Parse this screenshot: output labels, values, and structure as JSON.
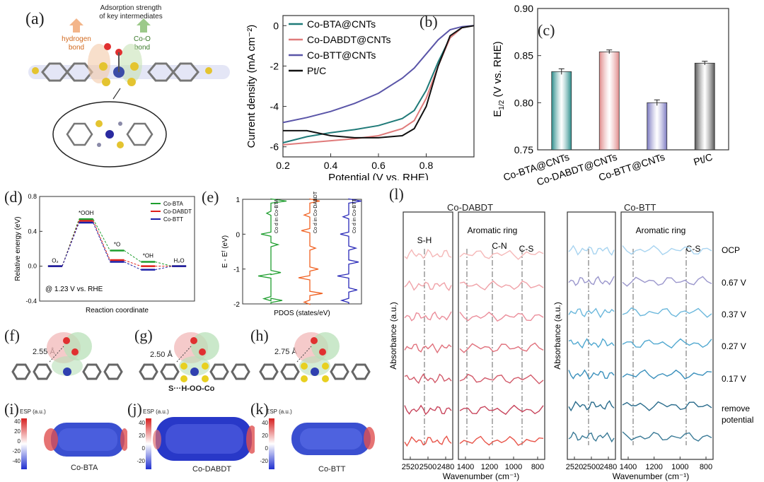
{
  "a": {
    "label": "(a)",
    "title_line1": "Adsorption strength",
    "title_line2": "of key intermediates",
    "hbond": "hydrogen\nbond",
    "hbond_l1": "hydrogen",
    "hbond_l2": "bond",
    "coo_l1": "Co-O",
    "coo_l2": "bond"
  },
  "b": {
    "label": "(b)",
    "xlabel": "Potential (V vs. RHE)",
    "ylabel": "Current density (mA cm⁻²)",
    "legend": [
      "Co-BTA@CNTs",
      "Co-DABDT@CNTs",
      "Co-BTT@CNTs",
      "Pt/C"
    ]
  },
  "c": {
    "label": "(c)",
    "ylabel_main": "E",
    "ylabel_sub": "1/2",
    "ylabel_rest": " (V vs. RHE)"
  },
  "d": {
    "label": "(d)",
    "xlabel": "Reaction coordinate",
    "ylabel": "Relative energy (eV)",
    "note": "@ 1.23 V vs. RHE",
    "states": [
      "O₂",
      "*OOH",
      "*O",
      "*OH",
      "H₂O"
    ],
    "legend": [
      "Co-BTA",
      "Co-DABDT",
      "Co-BTT"
    ]
  },
  "e": {
    "label": "(e)",
    "xlabel": "PDOS (states/eV)",
    "ylabel": "E - Eᶠ (eV)",
    "traces": [
      "Co d in Co-BTA",
      "Co d in Co-DABDT",
      "Co d in Co-BTT"
    ]
  },
  "f": {
    "label": "(f)",
    "dist": "2.55 Å"
  },
  "g": {
    "label": "(g)",
    "dist": "2.50 Å",
    "bond": "S···H-OO-Co"
  },
  "h": {
    "label": "(h)",
    "dist": "2.75 Å"
  },
  "i": {
    "label": "(i)",
    "esp": "ESP (a.u.)",
    "name": "Co-BTA",
    "ticks": [
      "40",
      "20",
      "0",
      "-20",
      "-40"
    ]
  },
  "j": {
    "label": "(j)",
    "esp": "ESP (a.u.)",
    "name": "Co-DABDT",
    "ticks": [
      "40",
      "20",
      "0",
      "-20"
    ]
  },
  "k": {
    "label": "(k)",
    "esp": "ESP (a.u.)",
    "name": "Co-BTT",
    "ticks": [
      "40",
      "20",
      "0",
      "-20"
    ]
  },
  "l": {
    "label": "(l)",
    "title_left": "Co-DABDT",
    "title_right": "Co-BTT",
    "ylabel": "Absorbance (a.u.)",
    "xlabel": "Wavenumber (cm⁻¹)",
    "ann_sh": "S-H",
    "ann_ring": "Aromatic ring",
    "ann_cn": "C-N",
    "ann_cs": "C-S",
    "potentials": [
      "OCP",
      "0.67 V",
      "0.37 V",
      "0.27 V",
      "0.17 V",
      "remove",
      "potential"
    ],
    "ticks_a": [
      "2520",
      "2500",
      "2480"
    ],
    "ticks_b": [
      "1400",
      "1200",
      "1000",
      "800"
    ]
  },
  "chart_data": [
    {
      "type": "line",
      "panel": "b",
      "xlabel": "Potential (V vs. RHE)",
      "ylabel": "Current density (mA cm⁻²)",
      "xlim": [
        0.2,
        1.0
      ],
      "ylim": [
        -6.5,
        0.5
      ],
      "xticks": [
        0.2,
        0.4,
        0.6,
        0.8
      ],
      "yticks": [
        0,
        -2,
        -4,
        -6
      ],
      "series": [
        {
          "name": "Co-BTA@CNTs",
          "color": "#1f7a78",
          "x": [
            0.2,
            0.3,
            0.4,
            0.5,
            0.6,
            0.7,
            0.75,
            0.8,
            0.85,
            0.9,
            0.95,
            1.0
          ],
          "y": [
            -5.8,
            -5.5,
            -5.3,
            -5.15,
            -4.95,
            -4.6,
            -4.2,
            -3.2,
            -1.8,
            -0.6,
            -0.1,
            0
          ]
        },
        {
          "name": "Co-DABDT@CNTs",
          "color": "#e07b7b",
          "x": [
            0.2,
            0.3,
            0.4,
            0.5,
            0.6,
            0.7,
            0.75,
            0.8,
            0.85,
            0.9,
            0.95,
            1.0
          ],
          "y": [
            -5.9,
            -5.8,
            -5.7,
            -5.6,
            -5.45,
            -5.1,
            -4.7,
            -3.6,
            -2.0,
            -0.6,
            -0.1,
            0
          ]
        },
        {
          "name": "Co-BTT@CNTs",
          "color": "#5a55a8",
          "x": [
            0.2,
            0.3,
            0.4,
            0.5,
            0.6,
            0.7,
            0.75,
            0.8,
            0.85,
            0.9,
            0.95,
            1.0
          ],
          "y": [
            -4.8,
            -4.55,
            -4.25,
            -3.85,
            -3.35,
            -2.6,
            -2.1,
            -1.4,
            -0.7,
            -0.2,
            -0.05,
            0
          ]
        },
        {
          "name": "Pt/C",
          "color": "#111111",
          "x": [
            0.2,
            0.3,
            0.4,
            0.5,
            0.6,
            0.7,
            0.75,
            0.8,
            0.85,
            0.9,
            0.95,
            1.0
          ],
          "y": [
            -5.2,
            -5.2,
            -5.45,
            -5.55,
            -5.55,
            -5.45,
            -5.1,
            -4.0,
            -2.0,
            -0.5,
            -0.1,
            0
          ]
        }
      ]
    },
    {
      "type": "bar",
      "panel": "c",
      "categories": [
        "Co-BTA@CNTs",
        "Co-DABDT@CNTs",
        "Co-BTT@CNTs",
        "Pt/C"
      ],
      "values": [
        0.833,
        0.854,
        0.8,
        0.842
      ],
      "errors": [
        0.003,
        0.002,
        0.003,
        0.002
      ],
      "colors": [
        "#2a8c8a",
        "#e08a8a",
        "#7a78c0",
        "#555555"
      ],
      "ylabel": "E1/2 (V vs. RHE)",
      "ylim": [
        0.75,
        0.9
      ],
      "yticks": [
        0.75,
        0.8,
        0.85,
        0.9
      ]
    },
    {
      "type": "line",
      "panel": "d",
      "xlabel": "Reaction coordinate",
      "ylabel": "Relative energy (eV)",
      "ylim": [
        -0.4,
        0.8
      ],
      "yticks": [
        -0.4,
        0.0,
        0.4,
        0.8
      ],
      "categories": [
        "O₂",
        "*OOH",
        "*O",
        "*OH",
        "H₂O"
      ],
      "series": [
        {
          "name": "Co-BTA",
          "color": "#1e9e2e",
          "values": [
            0,
            0.54,
            0.18,
            0.05,
            0
          ]
        },
        {
          "name": "Co-DABDT",
          "color": "#e0201b",
          "values": [
            0,
            0.52,
            0.07,
            0.0,
            0
          ]
        },
        {
          "name": "Co-BTT",
          "color": "#1b1fa8",
          "values": [
            0,
            0.5,
            0.05,
            -0.04,
            0
          ]
        }
      ]
    }
  ]
}
